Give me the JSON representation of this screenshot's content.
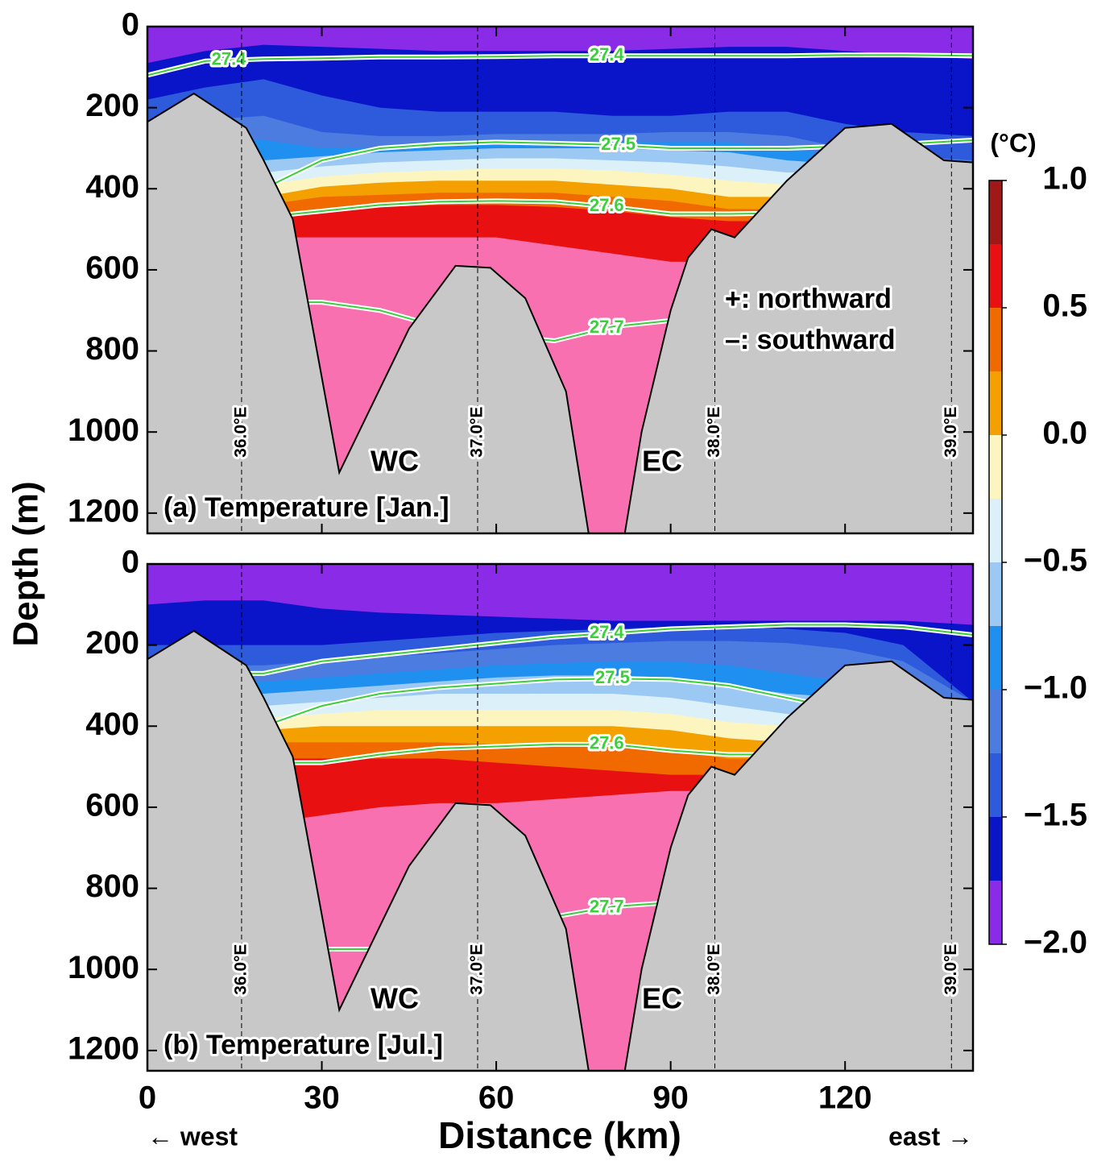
{
  "chart_data": [
    {
      "type": "contour-section",
      "title": "(a) Temperature [Jan.]",
      "xlim": [
        0,
        142
      ],
      "ylim": [
        0,
        1250
      ],
      "y_direction": "down",
      "xticks": [
        0,
        30,
        60,
        90,
        120
      ],
      "yticks": [
        0,
        200,
        400,
        600,
        800,
        1000,
        1200
      ],
      "x": [
        0,
        10,
        20,
        30,
        40,
        50,
        60,
        70,
        80,
        90,
        100,
        110,
        120,
        130,
        142
      ],
      "isotherms": [
        {
          "level": 0.75,
          "depth": [
            520,
            520,
            520,
            520,
            520,
            520,
            520,
            540,
            560,
            580,
            580,
            580,
            580,
            580,
            580
          ]
        },
        {
          "level": 0.5,
          "depth": [
            450,
            450,
            470,
            450,
            445,
            440,
            440,
            445,
            455,
            470,
            480,
            480,
            480,
            480,
            480
          ]
        },
        {
          "level": 0.25,
          "depth": [
            420,
            420,
            440,
            420,
            415,
            410,
            410,
            410,
            420,
            430,
            450,
            450,
            450,
            450,
            450
          ]
        },
        {
          "level": 0,
          "depth": [
            390,
            390,
            420,
            395,
            385,
            380,
            380,
            380,
            390,
            400,
            420,
            420,
            420,
            420,
            420
          ]
        },
        {
          "level": -0.25,
          "depth": [
            360,
            360,
            390,
            370,
            360,
            355,
            350,
            350,
            355,
            365,
            380,
            390,
            390,
            390,
            390
          ]
        },
        {
          "level": -0.5,
          "depth": [
            330,
            330,
            360,
            345,
            335,
            330,
            325,
            325,
            330,
            335,
            345,
            360,
            360,
            360,
            360
          ]
        },
        {
          "level": -0.75,
          "depth": [
            300,
            300,
            330,
            320,
            310,
            305,
            300,
            300,
            300,
            305,
            310,
            330,
            340,
            340,
            340
          ]
        },
        {
          "level": -1,
          "depth": [
            270,
            270,
            280,
            300,
            300,
            290,
            285,
            285,
            285,
            285,
            285,
            300,
            320,
            330,
            330
          ]
        },
        {
          "level": -1.25,
          "depth": [
            240,
            230,
            220,
            260,
            270,
            270,
            265,
            265,
            265,
            260,
            260,
            270,
            300,
            320,
            330
          ]
        },
        {
          "level": -1.5,
          "depth": [
            180,
            150,
            130,
            170,
            200,
            210,
            210,
            210,
            220,
            220,
            210,
            210,
            240,
            260,
            270
          ]
        },
        {
          "level": -1.75,
          "depth": [
            90,
            60,
            45,
            50,
            55,
            60,
            60,
            60,
            60,
            55,
            50,
            50,
            60,
            70,
            80
          ]
        }
      ],
      "density_contours": [
        {
          "name": "27.4",
          "depth": [
            120,
            85,
            80,
            78,
            75,
            75,
            74,
            72,
            72,
            72,
            72,
            72,
            70,
            70,
            72
          ]
        },
        {
          "name": "27.5",
          "depth": [
            400,
            400,
            400,
            330,
            300,
            290,
            285,
            288,
            292,
            300,
            300,
            300,
            295,
            290,
            280
          ]
        },
        {
          "name": "27.6",
          "depth": [
            470,
            470,
            470,
            455,
            440,
            432,
            430,
            432,
            445,
            462,
            462,
            460,
            460,
            460,
            460
          ]
        },
        {
          "name": "27.7",
          "depth": [
            680,
            680,
            680,
            680,
            700,
            740,
            760,
            775,
            740,
            725,
            725,
            725,
            725,
            725,
            725
          ]
        }
      ],
      "bathymetry": {
        "x": [
          0,
          8,
          17,
          20,
          25,
          33,
          45,
          53,
          59,
          65,
          72,
          76,
          82,
          85,
          90,
          93,
          97,
          101,
          110,
          120,
          128,
          137,
          142
        ],
        "depth": [
          235,
          165,
          250,
          330,
          475,
          1100,
          745,
          590,
          595,
          670,
          900,
          1260,
          1260,
          1000,
          700,
          570,
          500,
          520,
          380,
          250,
          240,
          330,
          335
        ]
      },
      "longitudes": [
        {
          "x": 16.2,
          "label": "36.0°E"
        },
        {
          "x": 56.8,
          "label": "37.0°E"
        },
        {
          "x": 97.6,
          "label": "38.0°E"
        },
        {
          "x": 138.3,
          "label": "39.0°E"
        }
      ],
      "annotations": [
        "WC",
        "EC",
        "+: northward",
        "–: southward"
      ]
    },
    {
      "type": "contour-section",
      "title": "(b) Temperature [Jul.]",
      "xlim": [
        0,
        142
      ],
      "ylim": [
        0,
        1250
      ],
      "y_direction": "down",
      "xticks": [
        0,
        30,
        60,
        90,
        120
      ],
      "yticks": [
        0,
        200,
        400,
        600,
        800,
        1000,
        1200
      ],
      "x": [
        0,
        10,
        20,
        30,
        40,
        50,
        60,
        70,
        80,
        90,
        100,
        110,
        120,
        130,
        142
      ],
      "isotherms": [
        {
          "level": 0.75,
          "depth": [
            640,
            640,
            640,
            620,
            600,
            590,
            590,
            580,
            570,
            560,
            560,
            560,
            560,
            560,
            560
          ]
        },
        {
          "level": 0.5,
          "depth": [
            480,
            480,
            480,
            480,
            480,
            480,
            490,
            500,
            510,
            520,
            520,
            520,
            520,
            520,
            520
          ]
        },
        {
          "level": 0.25,
          "depth": [
            440,
            440,
            440,
            440,
            440,
            440,
            445,
            450,
            450,
            460,
            480,
            480,
            480,
            480,
            480
          ]
        },
        {
          "level": 0,
          "depth": [
            400,
            400,
            410,
            400,
            400,
            400,
            400,
            400,
            400,
            410,
            430,
            440,
            440,
            440,
            440
          ]
        },
        {
          "level": -0.25,
          "depth": [
            360,
            360,
            380,
            370,
            360,
            360,
            360,
            360,
            360,
            370,
            390,
            400,
            400,
            400,
            400
          ]
        },
        {
          "level": -0.5,
          "depth": [
            330,
            330,
            350,
            340,
            330,
            320,
            320,
            320,
            320,
            330,
            350,
            370,
            370,
            370,
            370
          ]
        },
        {
          "level": -0.75,
          "depth": [
            310,
            310,
            320,
            310,
            300,
            290,
            280,
            275,
            275,
            280,
            300,
            320,
            330,
            340,
            340
          ]
        },
        {
          "level": -1,
          "depth": [
            290,
            290,
            290,
            280,
            270,
            260,
            250,
            245,
            240,
            240,
            250,
            270,
            290,
            320,
            340
          ]
        },
        {
          "level": -1.25,
          "depth": [
            260,
            250,
            250,
            240,
            230,
            220,
            210,
            200,
            195,
            190,
            190,
            195,
            210,
            240,
            340
          ]
        },
        {
          "level": -1.5,
          "depth": [
            200,
            200,
            200,
            200,
            190,
            180,
            170,
            165,
            160,
            155,
            155,
            160,
            170,
            200,
            340
          ]
        },
        {
          "level": -1.75,
          "depth": [
            100,
            90,
            90,
            110,
            120,
            125,
            130,
            135,
            140,
            140,
            140,
            140,
            140,
            140,
            150
          ]
        }
      ],
      "density_contours": [
        {
          "name": "27.4",
          "depth": [
            270,
            270,
            270,
            240,
            225,
            210,
            195,
            180,
            170,
            160,
            155,
            150,
            150,
            155,
            175
          ]
        },
        {
          "name": "27.5",
          "depth": [
            410,
            410,
            400,
            350,
            320,
            305,
            295,
            285,
            283,
            285,
            300,
            330,
            360,
            380,
            380
          ]
        },
        {
          "name": "27.6",
          "depth": [
            490,
            490,
            490,
            490,
            470,
            455,
            450,
            445,
            445,
            460,
            470,
            470,
            470,
            470,
            470
          ]
        },
        {
          "name": "27.7",
          "depth": [
            950,
            950,
            950,
            950,
            950,
            900,
            880,
            870,
            845,
            835,
            830,
            830,
            830,
            830,
            830
          ]
        }
      ],
      "bathymetry": {
        "x": [
          0,
          8,
          17,
          20,
          25,
          33,
          45,
          53,
          59,
          65,
          72,
          76,
          82,
          85,
          90,
          93,
          97,
          101,
          110,
          120,
          128,
          137,
          142
        ],
        "depth": [
          235,
          165,
          250,
          330,
          475,
          1100,
          745,
          590,
          595,
          670,
          900,
          1260,
          1260,
          1000,
          700,
          570,
          500,
          520,
          380,
          250,
          240,
          330,
          335
        ]
      },
      "longitudes": [
        {
          "x": 16.2,
          "label": "36.0°E"
        },
        {
          "x": 56.8,
          "label": "37.0°E"
        },
        {
          "x": 97.6,
          "label": "38.0°E"
        },
        {
          "x": 138.3,
          "label": "39.0°E"
        }
      ],
      "annotations": [
        "WC",
        "EC"
      ]
    }
  ],
  "ylabel": "Depth (m)",
  "xlabel": "Distance (km)",
  "west": "← west",
  "east": "east →",
  "colorbar": {
    "unit": "(°C)",
    "levels": [
      -2,
      -1.75,
      -1.5,
      -1.25,
      -1,
      -0.75,
      -0.5,
      -0.25,
      0,
      0.25,
      0.5,
      0.75,
      1
    ],
    "colors": [
      "#8a2be8",
      "#0a14c8",
      "#2e5adc",
      "#4c7ce0",
      "#2090f0",
      "#9cc8f4",
      "#dcf0fa",
      "#fcf5c0",
      "#f4a000",
      "#f06a00",
      "#e81010",
      "#a01818",
      "#f870b0"
    ],
    "ticks": [
      {
        "value": 1,
        "label": "1.0"
      },
      0.5,
      {
        "value": 0,
        "label": "0.0"
      },
      {
        "value": -0.5,
        "label": "−0.5"
      },
      {
        "value": -1,
        "label": "−1.0"
      },
      {
        "value": -1.5,
        "label": "−1.5"
      },
      {
        "value": -2,
        "label": "−2.0"
      }
    ]
  }
}
